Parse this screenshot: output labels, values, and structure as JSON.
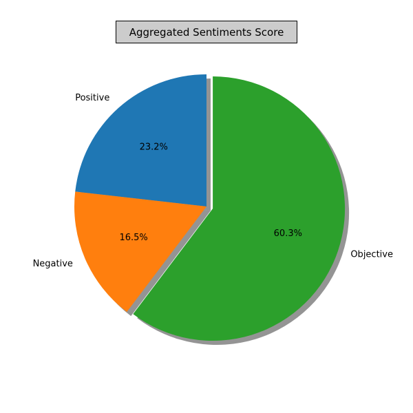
{
  "chart_data": {
    "type": "pie",
    "title": "Aggregated Sentiments Score",
    "start_angle_deg": 90,
    "direction": "counterclockwise",
    "shadow": true,
    "slices": [
      {
        "label": "Positive",
        "value": 23.2,
        "pct_label": "23.2%",
        "color": "#1f77b4",
        "explode": 0
      },
      {
        "label": "Negative",
        "value": 16.5,
        "pct_label": "16.5%",
        "color": "#ff7f0e",
        "explode": 0
      },
      {
        "label": "Objective",
        "value": 60.3,
        "pct_label": "60.3%",
        "color": "#2ca02c",
        "explode": 0.05
      }
    ]
  }
}
